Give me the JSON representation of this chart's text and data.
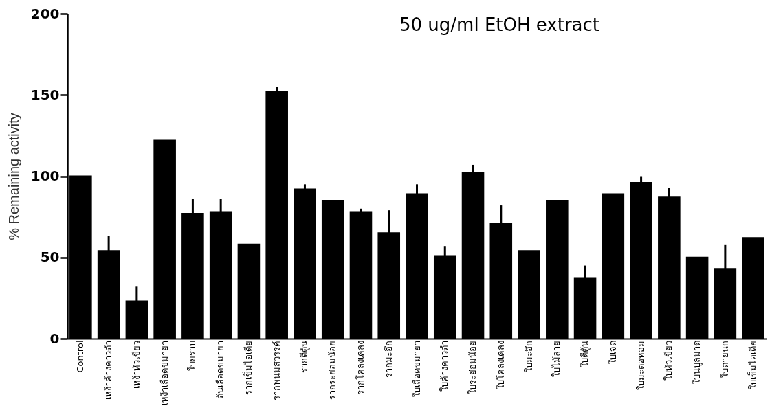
{
  "chart_data": {
    "type": "bar",
    "title": "50 ug/ml EtOH extract",
    "ylabel": "% Remaining activity",
    "categories": [
      "Control",
      "เหง้าค้างคาวดำ",
      "เหง้าหัวเขียว",
      "เหง้าเลือดขมายา",
      "ใบยราบ",
      "ต้นเลือดขมายา",
      "รากเข็มไอเดีย",
      "รากพนมสวรรค์",
      "รากตีตู้น",
      "รากระย่อมน้อย",
      "รากโคลงเคลง",
      "รากมะอึก",
      "ใบเลือดขมายา",
      "ใบค้างคาวดำ",
      "ใบระย่อมน้อย",
      "ใบโคลงเคลง",
      "ใบมะอึก",
      "ใบไม้ลาย",
      "ใบตีตู้น",
      "ใบเจด",
      "ใบมะต่อหอม",
      "ใบหัวเขียว",
      "ใบนบูลมาด",
      "ใบตายนก",
      "ใบเข็มไอเดีย"
    ],
    "values": [
      100,
      54,
      23,
      122,
      77,
      78,
      58,
      152,
      92,
      85,
      78,
      65,
      89,
      51,
      102,
      71,
      54,
      85,
      37,
      89,
      96,
      87,
      50,
      43,
      62
    ],
    "errors": [
      null,
      [
        54,
        63
      ],
      [
        23,
        32
      ],
      null,
      [
        77,
        86
      ],
      [
        78,
        86
      ],
      null,
      [
        152,
        155
      ],
      [
        92,
        95
      ],
      null,
      [
        78,
        80
      ],
      [
        65,
        79
      ],
      [
        89,
        95
      ],
      [
        51,
        57
      ],
      [
        102,
        107
      ],
      [
        71,
        82
      ],
      null,
      null,
      [
        37,
        45
      ],
      null,
      [
        96,
        100
      ],
      [
        87,
        93
      ],
      null,
      [
        43,
        58
      ],
      null
    ],
    "color": "#000000",
    "ylim": [
      0,
      200
    ],
    "yticks": [
      0,
      50,
      100,
      150,
      200
    ],
    "grid": false
  }
}
